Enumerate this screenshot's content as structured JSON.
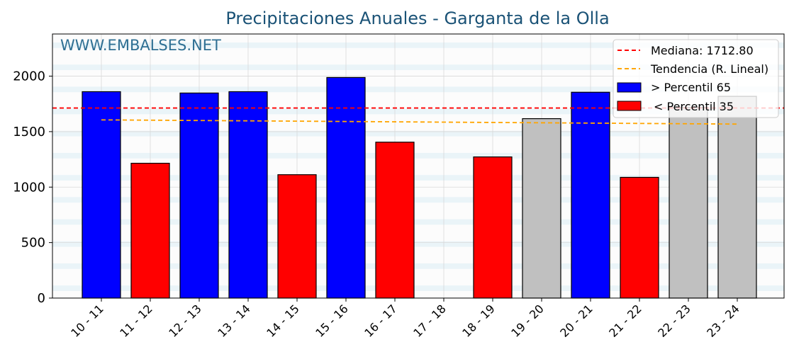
{
  "chart_data": {
    "type": "bar",
    "title": "Precipitaciones Anuales - Garganta de la Olla",
    "watermark": "WWW.EMBALSES.NET",
    "xlabel": "",
    "ylabel": "",
    "ylim": [
      0,
      2380
    ],
    "yticks": [
      0,
      500,
      1000,
      1500,
      2000
    ],
    "categories": [
      "10 - 11",
      "11 - 12",
      "12 - 13",
      "13 - 14",
      "14 - 15",
      "15 - 16",
      "16 - 17",
      "17 - 18",
      "18 - 19",
      "19 - 20",
      "20 - 21",
      "21 - 22",
      "22 - 23",
      "23 - 24"
    ],
    "values": [
      1860,
      1215,
      1848,
      1860,
      1112,
      1988,
      1405,
      0,
      1272,
      1617,
      1855,
      1088,
      1718,
      1818
    ],
    "classes": [
      "high",
      "low",
      "high",
      "high",
      "low",
      "high",
      "low",
      "mid",
      "low",
      "mid",
      "high",
      "low",
      "mid",
      "mid"
    ],
    "median": {
      "label": "Mediana: 1712.80",
      "value": 1712.8
    },
    "trend": {
      "label": "Tendencia (R. Lineal)",
      "start": 1606,
      "end": 1568
    },
    "legend": {
      "position": "top-right",
      "high_label": " > Percentil 65",
      "low_label": "< Percentil 35"
    },
    "grid": true,
    "colors": {
      "high": "#0000ff",
      "low": "#ff0000",
      "mid": "#c0c0c0",
      "median": "#ff0000",
      "trend": "#ffa500",
      "title": "#1a5276",
      "watermark": "#2e6f93",
      "stripe": "#eaf4f8"
    }
  }
}
